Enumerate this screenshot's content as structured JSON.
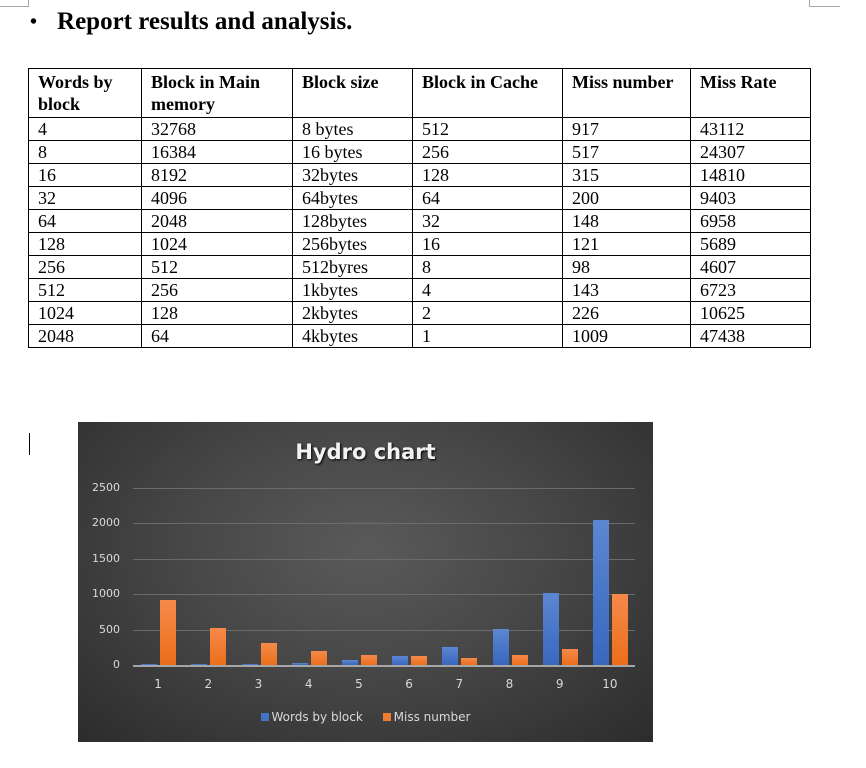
{
  "heading": {
    "bullet": "•",
    "text": "Report results and analysis."
  },
  "table": {
    "headers": [
      "Words by block",
      "Block in Main memory",
      "Block size",
      "Block in Cache",
      "Miss number",
      "Miss Rate"
    ],
    "rows": [
      [
        "4",
        "32768",
        "8 bytes",
        "512",
        "917",
        "43112"
      ],
      [
        "8",
        "16384",
        "16 bytes",
        "256",
        "517",
        "24307"
      ],
      [
        "16",
        "8192",
        "32bytes",
        "128",
        "315",
        "14810"
      ],
      [
        "32",
        "4096",
        "64bytes",
        "64",
        "200",
        "9403"
      ],
      [
        "64",
        "2048",
        "128bytes",
        "32",
        "148",
        "6958"
      ],
      [
        "128",
        "1024",
        "256bytes",
        "16",
        "121",
        "5689"
      ],
      [
        "256",
        "512",
        "512byres",
        "8",
        "98",
        "4607"
      ],
      [
        "512",
        "256",
        "1kbytes",
        "4",
        "143",
        "6723"
      ],
      [
        "1024",
        "128",
        "2kbytes",
        "2",
        "226",
        "10625"
      ],
      [
        "2048",
        "64",
        "4kbytes",
        "1",
        "1009",
        "47438"
      ]
    ]
  },
  "chart_data": {
    "type": "bar",
    "title": "Hydro chart",
    "categories": [
      "1",
      "2",
      "3",
      "4",
      "5",
      "6",
      "7",
      "8",
      "9",
      "10"
    ],
    "series": [
      {
        "name": "Words by block",
        "color": "#4472c4",
        "values": [
          4,
          8,
          16,
          32,
          64,
          128,
          256,
          512,
          1024,
          2048
        ]
      },
      {
        "name": "Miss number",
        "color": "#ed7d31",
        "values": [
          917,
          517,
          315,
          200,
          148,
          121,
          98,
          143,
          226,
          1009
        ]
      }
    ],
    "yticks": [
      "2500",
      "2000",
      "1500",
      "1000",
      "500",
      "0"
    ],
    "ylim": [
      0,
      2500
    ],
    "xlabel": "",
    "ylabel": "",
    "grid": true,
    "legend_position": "bottom"
  }
}
